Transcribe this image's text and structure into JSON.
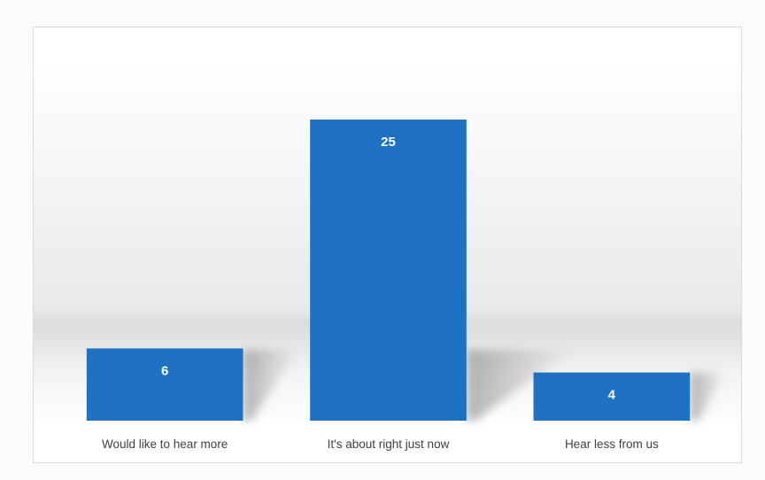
{
  "chart_data": {
    "type": "bar",
    "categories": [
      "Would like to hear more",
      "It's about right just now",
      "Hear less from us"
    ],
    "values": [
      6,
      25,
      4
    ],
    "title": "",
    "xlabel": "",
    "ylabel": "",
    "ylim": [
      0,
      30
    ],
    "grid": false,
    "legend": "none",
    "data_labels": true,
    "bar_color": "#1f72c3"
  }
}
